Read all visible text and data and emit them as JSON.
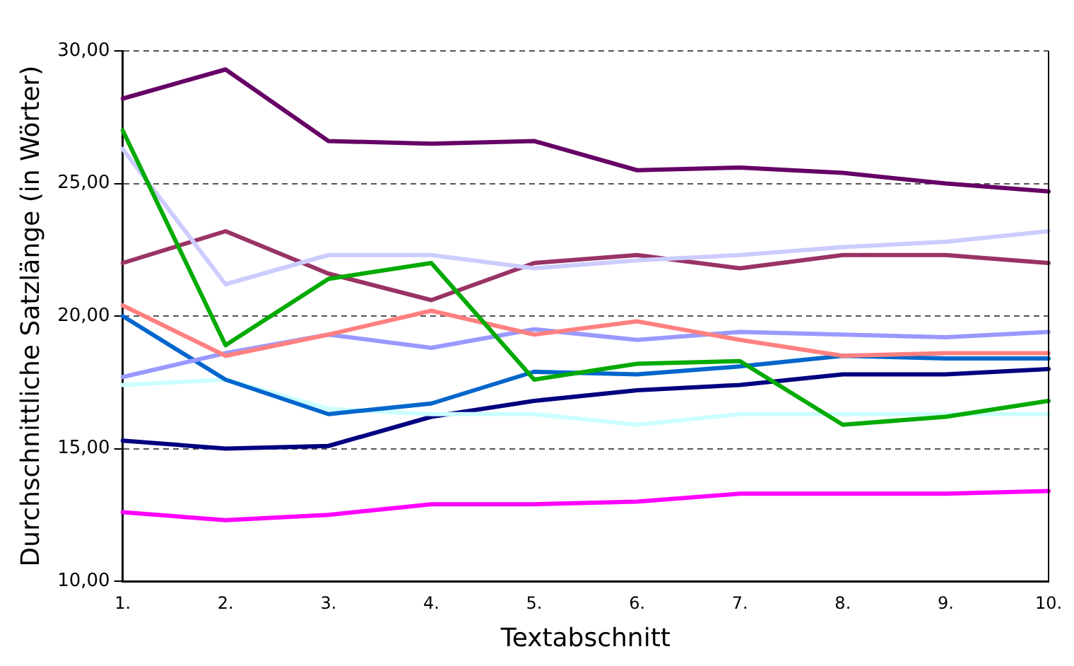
{
  "chart_data": {
    "type": "line",
    "xlabel": "Textabschnitt",
    "ylabel": "Durchschnittliche Satzlänge (in Wörter)",
    "categories": [
      "1.",
      "2.",
      "3.",
      "4.",
      "5.",
      "6.",
      "7.",
      "8.",
      "9.",
      "10."
    ],
    "ylim": [
      10,
      30
    ],
    "yticks": [
      {
        "value": 10,
        "label": "10,00"
      },
      {
        "value": 15,
        "label": "15,00"
      },
      {
        "value": 20,
        "label": "20,00"
      },
      {
        "value": 25,
        "label": "25,00"
      },
      {
        "value": 30,
        "label": "30,00"
      }
    ],
    "grid": "y",
    "legend": false,
    "marker": "none",
    "line_style": "solid",
    "series": [
      {
        "color": "#660066",
        "values": [
          28.2,
          29.3,
          26.6,
          26.5,
          26.6,
          25.5,
          25.6,
          25.4,
          25.0,
          24.7
        ]
      },
      {
        "color": "#00aa00",
        "values": [
          27.0,
          18.9,
          21.4,
          22.0,
          17.6,
          18.2,
          18.3,
          15.9,
          16.2,
          16.8
        ]
      },
      {
        "color": "#ccccff",
        "values": [
          26.3,
          21.2,
          22.3,
          22.3,
          21.8,
          22.1,
          22.3,
          22.6,
          22.8,
          23.2
        ]
      },
      {
        "color": "#993366",
        "values": [
          22.0,
          23.2,
          21.6,
          20.6,
          22.0,
          22.3,
          21.8,
          22.3,
          22.3,
          22.0
        ]
      },
      {
        "color": "#ff8080",
        "values": [
          20.4,
          18.5,
          19.3,
          20.2,
          19.3,
          19.8,
          19.1,
          18.5,
          18.6,
          18.6
        ]
      },
      {
        "color": "#9999ff",
        "values": [
          17.7,
          18.6,
          19.3,
          18.8,
          19.5,
          19.1,
          19.4,
          19.3,
          19.2,
          19.4
        ]
      },
      {
        "color": "#0066cc",
        "values": [
          20.0,
          17.6,
          16.3,
          16.7,
          17.9,
          17.8,
          18.1,
          18.5,
          18.4,
          18.4
        ]
      },
      {
        "color": "#ccffff",
        "values": [
          17.4,
          17.6,
          16.5,
          16.3,
          16.3,
          15.9,
          16.3,
          16.3,
          16.3,
          16.3
        ]
      },
      {
        "color": "#000080",
        "values": [
          15.3,
          15.0,
          15.1,
          16.2,
          16.8,
          17.2,
          17.4,
          17.8,
          17.8,
          18.0
        ]
      },
      {
        "color": "#ff00ff",
        "values": [
          12.6,
          12.3,
          12.5,
          12.9,
          12.9,
          13.0,
          13.3,
          13.3,
          13.3,
          13.4
        ]
      }
    ]
  }
}
